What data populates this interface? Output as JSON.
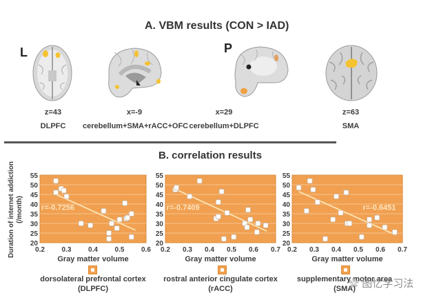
{
  "panelA": {
    "title": "A. VBM results (CON > IAD)",
    "orientation_labels": [
      "L",
      "P"
    ],
    "slices": [
      {
        "coord": "z=43",
        "region": "DLPFC",
        "view": "axial"
      },
      {
        "coord": "x=-9",
        "region": "cerebellum+SMA+rACC+OFC",
        "view": "sagittal-medial"
      },
      {
        "coord": "x=29",
        "region": "cerebellum+DLPFC",
        "view": "sagittal-lateral"
      },
      {
        "coord": "z=63",
        "region": "SMA",
        "view": "axial-top"
      }
    ],
    "highlight_color": "#f5c230"
  },
  "panelB": {
    "title": "B. correlation results",
    "ylabel_line1": "Duration of internet addiction",
    "ylabel_line2": "(/month)",
    "plot_bg": "#f0a050",
    "fit_color": "#fde4b4"
  },
  "chart_data": [
    {
      "type": "scatter",
      "title": "dorsolateral prefrontal cortex (DLPFC)",
      "region_line1": "dorsolateral prefrontal cortex",
      "region_line2": "(DLPFC)",
      "xlabel": "Gray matter volume",
      "ylabel": "Duration of internet addiction (/month)",
      "xlim": [
        0.2,
        0.6
      ],
      "ylim": [
        20,
        55
      ],
      "xticks": [
        "0.2",
        "0.3",
        "0.4",
        "0.5",
        "0.6"
      ],
      "yticks": [
        "20",
        "25",
        "30",
        "35",
        "40",
        "45",
        "50",
        "55"
      ],
      "annotation": "r=-0.7256",
      "fit": {
        "x": [
          0.26,
          0.56
        ],
        "y": [
          45,
          26.5
        ]
      },
      "grid": true,
      "legend": "bottom",
      "points": [
        [
          0.26,
          52
        ],
        [
          0.26,
          46
        ],
        [
          0.28,
          48
        ],
        [
          0.29,
          47
        ],
        [
          0.3,
          44
        ],
        [
          0.355,
          30
        ],
        [
          0.39,
          29
        ],
        [
          0.44,
          36.5
        ],
        [
          0.46,
          25
        ],
        [
          0.46,
          22
        ],
        [
          0.47,
          30
        ],
        [
          0.49,
          27.5
        ],
        [
          0.5,
          32
        ],
        [
          0.52,
          40.5
        ],
        [
          0.525,
          32.5
        ],
        [
          0.53,
          33
        ],
        [
          0.545,
          35
        ],
        [
          0.545,
          23
        ]
      ]
    },
    {
      "type": "scatter",
      "title": "rostral anterior cingulate cortex (rACC)",
      "region_line1": "rostral anterior cingulate cortex",
      "region_line2": "(rACC)",
      "xlabel": "Gray matter volume",
      "ylabel": "Duration of internet addiction (/month)",
      "xlim": [
        0.2,
        0.7
      ],
      "ylim": [
        20,
        55
      ],
      "xticks": [
        "0.2",
        "0.3",
        "0.4",
        "0.5",
        "0.6",
        "0.7"
      ],
      "yticks": [
        "20",
        "25",
        "30",
        "35",
        "40",
        "45",
        "50",
        "55"
      ],
      "annotation": "r=-0.7409",
      "fit": {
        "x": [
          0.24,
          0.66
        ],
        "y": [
          48,
          26
        ]
      },
      "grid": true,
      "legend": "bottom",
      "points": [
        [
          0.245,
          47.5
        ],
        [
          0.25,
          48.5
        ],
        [
          0.31,
          44
        ],
        [
          0.355,
          52
        ],
        [
          0.43,
          32.5
        ],
        [
          0.44,
          33.5
        ],
        [
          0.44,
          41
        ],
        [
          0.455,
          46.5
        ],
        [
          0.465,
          22
        ],
        [
          0.48,
          35.5
        ],
        [
          0.51,
          23
        ],
        [
          0.56,
          30
        ],
        [
          0.57,
          28
        ],
        [
          0.575,
          37
        ],
        [
          0.585,
          32
        ],
        [
          0.615,
          25.5
        ],
        [
          0.62,
          30
        ],
        [
          0.655,
          29
        ]
      ]
    },
    {
      "type": "scatter",
      "title": "supplementary motor area (SMA)",
      "region_line1": "supplementary motor area",
      "region_line2": "(SMA)",
      "xlabel": "Gray matter volume",
      "ylabel": "Duration of internet addiction (/month)",
      "xlim": [
        0.2,
        0.7
      ],
      "ylim": [
        20,
        55
      ],
      "xticks": [
        "0.2",
        "0.3",
        "0.4",
        "0.5",
        "0.6",
        "0.7"
      ],
      "yticks": [
        "20",
        "25",
        "30",
        "35",
        "40",
        "45",
        "50",
        "55"
      ],
      "annotation": "r=-0.6451",
      "fit": {
        "x": [
          0.23,
          0.67
        ],
        "y": [
          46.5,
          24
        ]
      },
      "grid": true,
      "legend": "bottom",
      "points": [
        [
          0.23,
          48.5
        ],
        [
          0.265,
          36.5
        ],
        [
          0.28,
          52
        ],
        [
          0.295,
          47.5
        ],
        [
          0.315,
          41
        ],
        [
          0.35,
          22
        ],
        [
          0.385,
          32
        ],
        [
          0.4,
          44
        ],
        [
          0.42,
          35.5
        ],
        [
          0.445,
          46
        ],
        [
          0.45,
          30
        ],
        [
          0.46,
          30
        ],
        [
          0.515,
          23
        ],
        [
          0.55,
          29
        ],
        [
          0.55,
          32
        ],
        [
          0.585,
          33
        ],
        [
          0.62,
          28
        ],
        [
          0.665,
          25.5
        ]
      ]
    }
  ],
  "watermark": "图忆学习法"
}
